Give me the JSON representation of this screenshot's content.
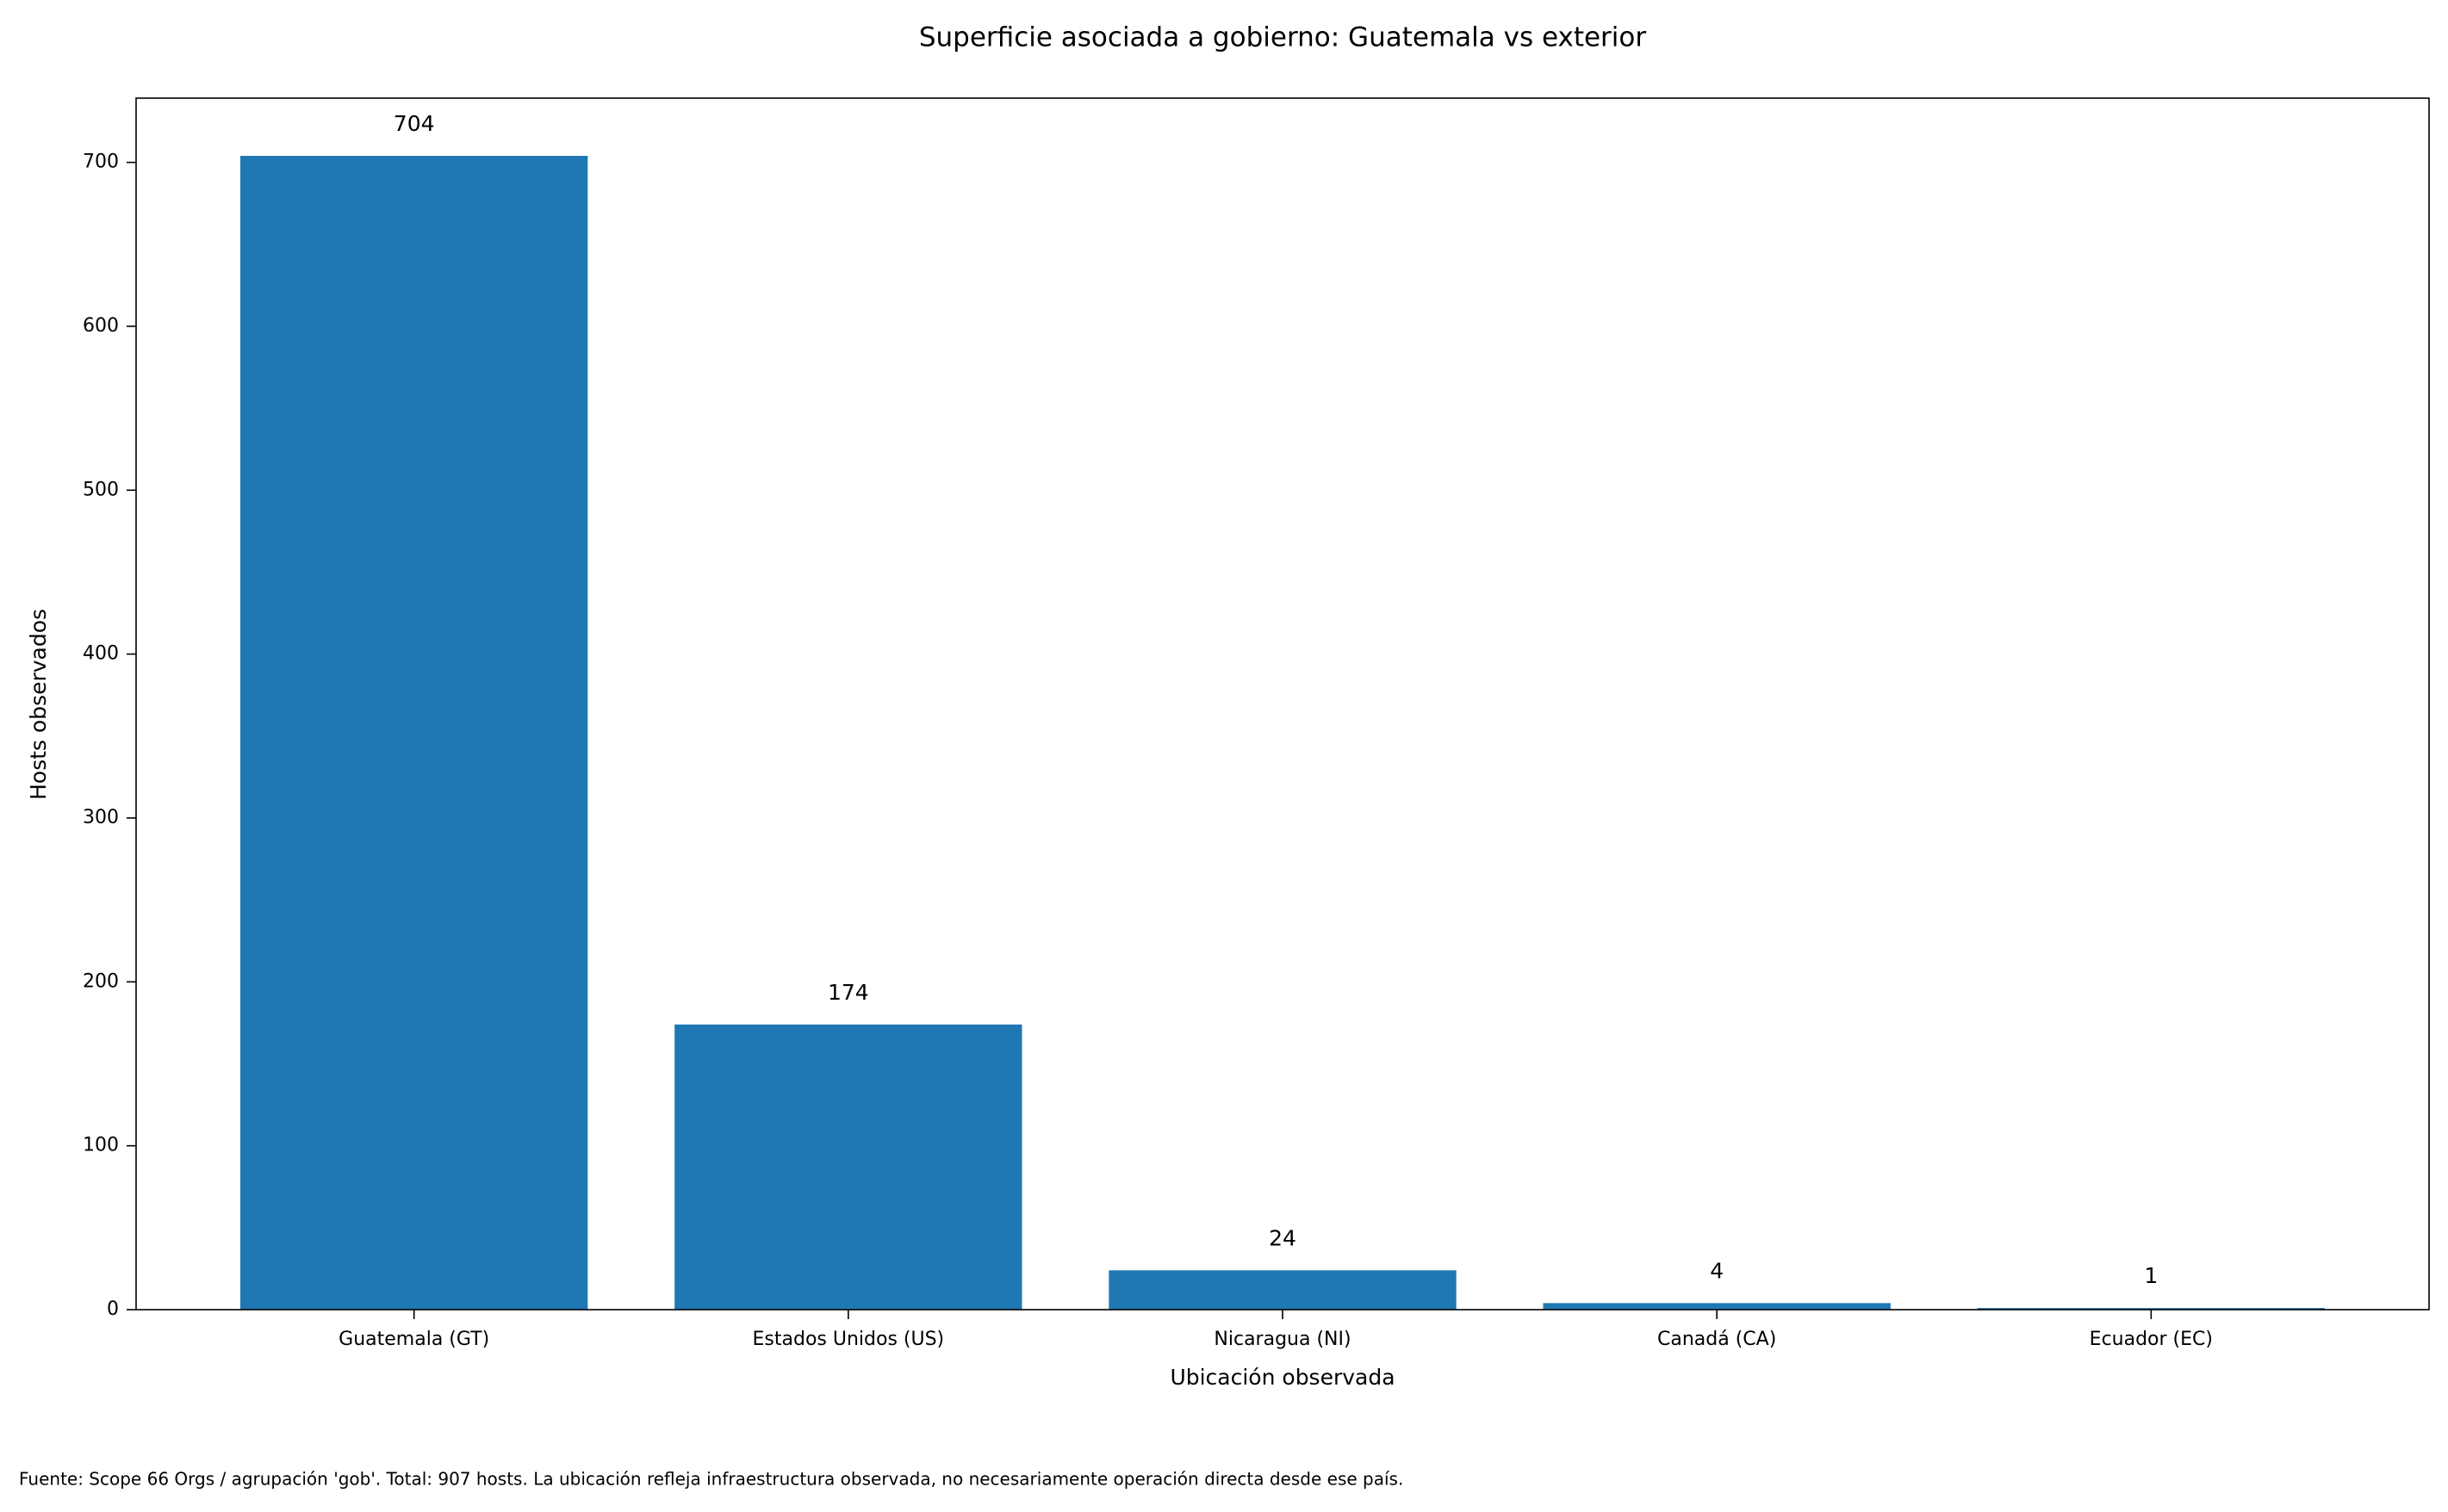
{
  "chart_data": {
    "type": "bar",
    "title": "Superficie asociada a gobierno: Guatemala vs exterior",
    "xlabel": "Ubicación observada",
    "ylabel": "Hosts observados",
    "note": "Fuente: Scope 66 Orgs / agrupación 'gob'. Total: 907 hosts. La ubicación refleja infraestructura observada, no necesariamente operación directa desde ese país.",
    "categories": [
      "Guatemala (GT)",
      "Estados Unidos (US)",
      "Nicaragua (NI)",
      "Canadá (CA)",
      "Ecuador (EC)"
    ],
    "values": [
      704,
      174,
      24,
      4,
      1
    ],
    "color": "#1f77b4",
    "ylim": [
      0,
      739.2
    ],
    "yticks": [
      0,
      100,
      200,
      300,
      400,
      500,
      600,
      700
    ],
    "grid": false
  }
}
